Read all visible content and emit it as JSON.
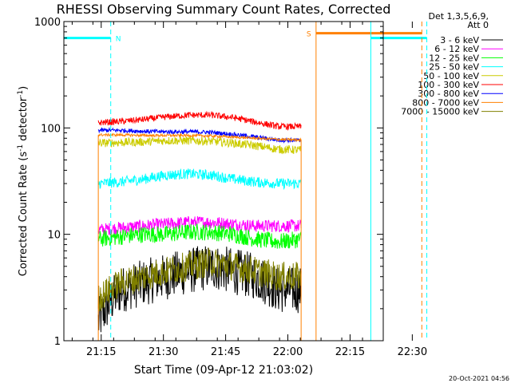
{
  "chart_data": {
    "type": "line",
    "title": "RHESSI Observing Summary Count Rates, Corrected",
    "xlabel": "Start Time (09-Apr-12 21:03:02)",
    "ylabel_main": "Corrected Count Rate (s",
    "ylabel_sup1": "-1",
    "ylabel_mid": " detector",
    "ylabel_sup2": "-1",
    "ylabel_end": ")",
    "yscale": "log",
    "ylim": [
      1,
      1000
    ],
    "x_range_min": [
      3,
      80
    ],
    "x_ticks": [
      {
        "v": 12,
        "label": "21:15"
      },
      {
        "v": 27,
        "label": "21:30"
      },
      {
        "v": 42,
        "label": "21:45"
      },
      {
        "v": 57,
        "label": "22:00"
      },
      {
        "v": 72,
        "label": "22:15"
      },
      {
        "v": 87,
        "label": "22:30"
      }
    ],
    "y_ticks": [
      {
        "v": 1,
        "label": "1"
      },
      {
        "v": 10,
        "label": "10"
      },
      {
        "v": 100,
        "label": "100"
      },
      {
        "v": 1000,
        "label": "1000"
      }
    ],
    "legend_header": [
      "Det 1,3,5,6,9,",
      "Att 0"
    ],
    "legend_position": "right",
    "footer_timestamp": "20-Oct-2021 04:56",
    "data_interval_min": [
      11.3,
      60.2
    ],
    "series": [
      {
        "name": "3 - 6 keV",
        "color": "#000000",
        "level": [
          1.5,
          3,
          3.5,
          4,
          4.5,
          5,
          4.5,
          4,
          3,
          3
        ],
        "noise": 0.22
      },
      {
        "name": "6 - 12 keV",
        "color": "#ff00ff",
        "level": [
          11,
          11.5,
          12,
          12.5,
          13,
          13,
          12.5,
          12,
          12,
          12
        ],
        "noise": 0.06
      },
      {
        "name": "12 - 25 keV",
        "color": "#00ff00",
        "level": [
          9,
          9.5,
          10,
          10,
          10.5,
          10.5,
          10,
          9,
          8.5,
          9
        ],
        "noise": 0.08
      },
      {
        "name": "25 - 50 keV",
        "color": "#00ffff",
        "level": [
          30,
          31,
          33,
          36,
          37,
          36,
          33,
          31,
          30,
          30
        ],
        "noise": 0.05
      },
      {
        "name": "50 - 100 keV",
        "color": "#cccc00",
        "level": [
          72,
          73,
          74,
          76,
          76,
          75,
          72,
          68,
          63,
          62
        ],
        "noise": 0.04
      },
      {
        "name": "100 - 300 keV",
        "color": "#ff0000",
        "level": [
          112,
          115,
          120,
          127,
          132,
          132,
          125,
          113,
          103,
          103
        ],
        "noise": 0.03
      },
      {
        "name": "300 - 800 keV",
        "color": "#0000ff",
        "level": [
          95,
          95,
          93,
          92,
          92,
          91,
          87,
          82,
          77,
          76
        ],
        "noise": 0.02
      },
      {
        "name": "800 - 7000 keV",
        "color": "#ff8000",
        "level": [
          86,
          86,
          85,
          85,
          85,
          84,
          82,
          80,
          78,
          77
        ],
        "noise": 0.012
      },
      {
        "name": "7000 - 15000 keV",
        "color": "#808000",
        "level": [
          2.5,
          3.5,
          4,
          4.5,
          5,
          5.5,
          5,
          4.5,
          4,
          4
        ],
        "noise": 0.14
      }
    ],
    "flags": {
      "night_label": "N",
      "saa_label": "S",
      "night_color": "#00ffff",
      "saa_color": "#ff8000",
      "night_segments": [
        [
          3,
          14.3
        ],
        [
          77,
          90.5
        ]
      ],
      "night_start_lines": [
        3,
        77
      ],
      "night_end_lines": [
        14.3,
        90.5
      ],
      "saa_segment": [
        63.8,
        89.3
      ],
      "saa_start_line": 63.8,
      "saa_end_line": 89.3,
      "data_edge_lines": [
        11.3,
        60.2
      ],
      "flag_level": 700
    }
  }
}
